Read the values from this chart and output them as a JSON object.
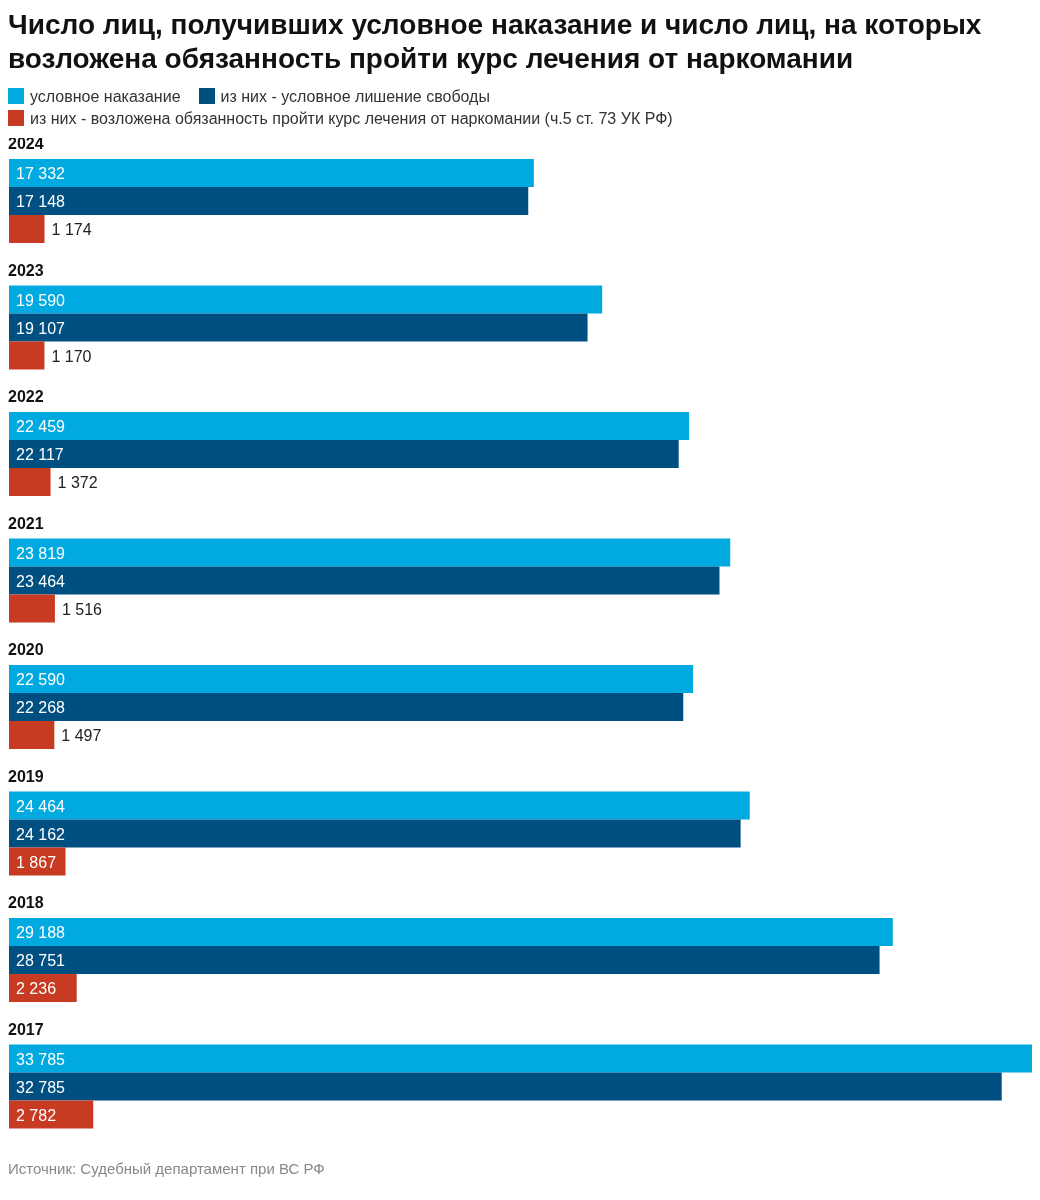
{
  "chart_data": {
    "type": "bar",
    "orientation": "horizontal",
    "title": "Число лиц, получивших условное наказание и число лиц, на которых возложена обязанность пройти курс лечения от наркомании",
    "categories": [
      "2024",
      "2023",
      "2022",
      "2021",
      "2020",
      "2019",
      "2018",
      "2017"
    ],
    "series": [
      {
        "name": "условное наказание",
        "color": "#00a9e0",
        "values": [
          17332,
          19590,
          22459,
          23819,
          22590,
          24464,
          29188,
          33785
        ]
      },
      {
        "name": "из них - условное лишение свободы",
        "color": "#004f81",
        "values": [
          17148,
          19107,
          22117,
          23464,
          22268,
          24162,
          28751,
          32785
        ]
      },
      {
        "name": "из них - возложена обязанность пройти курс лечения от наркомании (ч.5 ст. 73 УК РФ)",
        "color": "#c73b22",
        "values": [
          1174,
          1170,
          1372,
          1516,
          1497,
          1867,
          2236,
          2782
        ]
      }
    ],
    "xlim": [
      0,
      33785
    ],
    "tick_labels": "y",
    "data_labels": true,
    "legend": "top",
    "grid": false,
    "annotations": [
      "Источник: Судебный департамент при ВС РФ"
    ]
  }
}
